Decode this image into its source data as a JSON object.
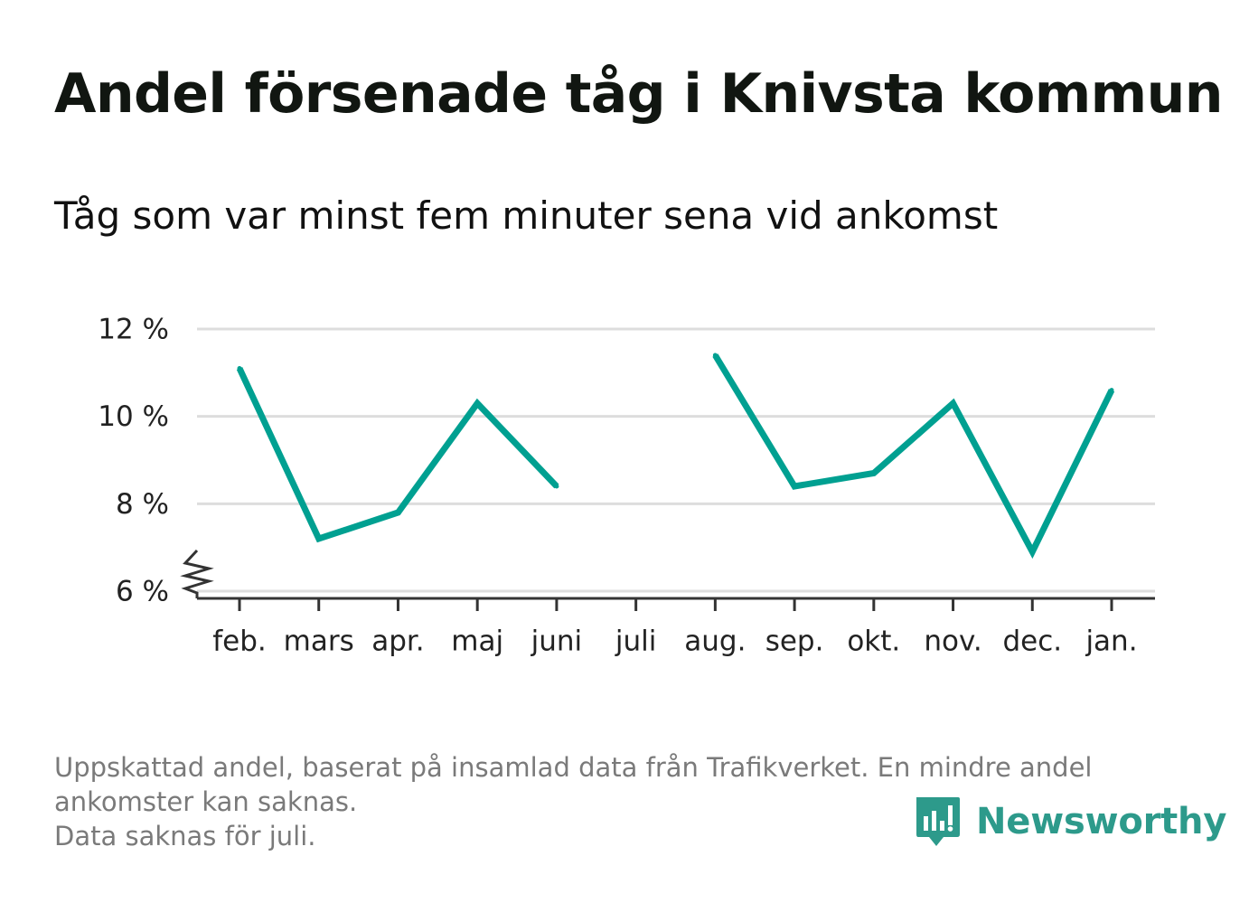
{
  "header": {
    "title": "Andel försenade tåg i Knivsta kommun",
    "subtitle": "Tåg som var minst fem minuter sena vid ankomst"
  },
  "chart_data": {
    "type": "line",
    "categories": [
      "feb.",
      "mars",
      "apr.",
      "maj",
      "juni",
      "juli",
      "aug.",
      "sep.",
      "okt.",
      "nov.",
      "dec.",
      "jan."
    ],
    "series": [
      {
        "values": [
          11.1,
          7.2,
          7.8,
          10.3,
          8.4,
          null,
          11.4,
          8.4,
          8.7,
          10.3,
          6.9,
          10.6
        ]
      }
    ],
    "yticks": [
      6,
      8,
      10,
      12
    ],
    "ytick_labels": [
      "6 %",
      "8 %",
      "10 %",
      "12 %"
    ],
    "ylim": [
      6,
      12
    ],
    "y_axis_break": true,
    "grid": true,
    "legend": "none",
    "colors": {
      "line": "#00a091",
      "grid": "#dddddd",
      "axis": "#333333",
      "tick_text": "#222222"
    }
  },
  "footer": {
    "note_lines": [
      "Uppskattad andel, baserat på insamlad data från Trafikverket. En mindre andel",
      "ankomster kan saknas.",
      "Data saknas för juli."
    ],
    "brand": "Newsworthy",
    "brand_icon": "newsworthy-logo-icon",
    "brand_color": "#2d9a8b"
  }
}
